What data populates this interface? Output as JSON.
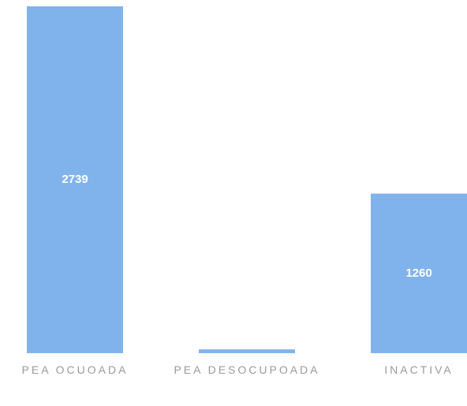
{
  "chart_data": {
    "type": "bar",
    "categories": [
      "PEA OCUOADA",
      "PEA DESOCUPOADA",
      "INACTIVA"
    ],
    "values": [
      2739,
      30,
      1260
    ],
    "color": "#80b3ec"
  }
}
